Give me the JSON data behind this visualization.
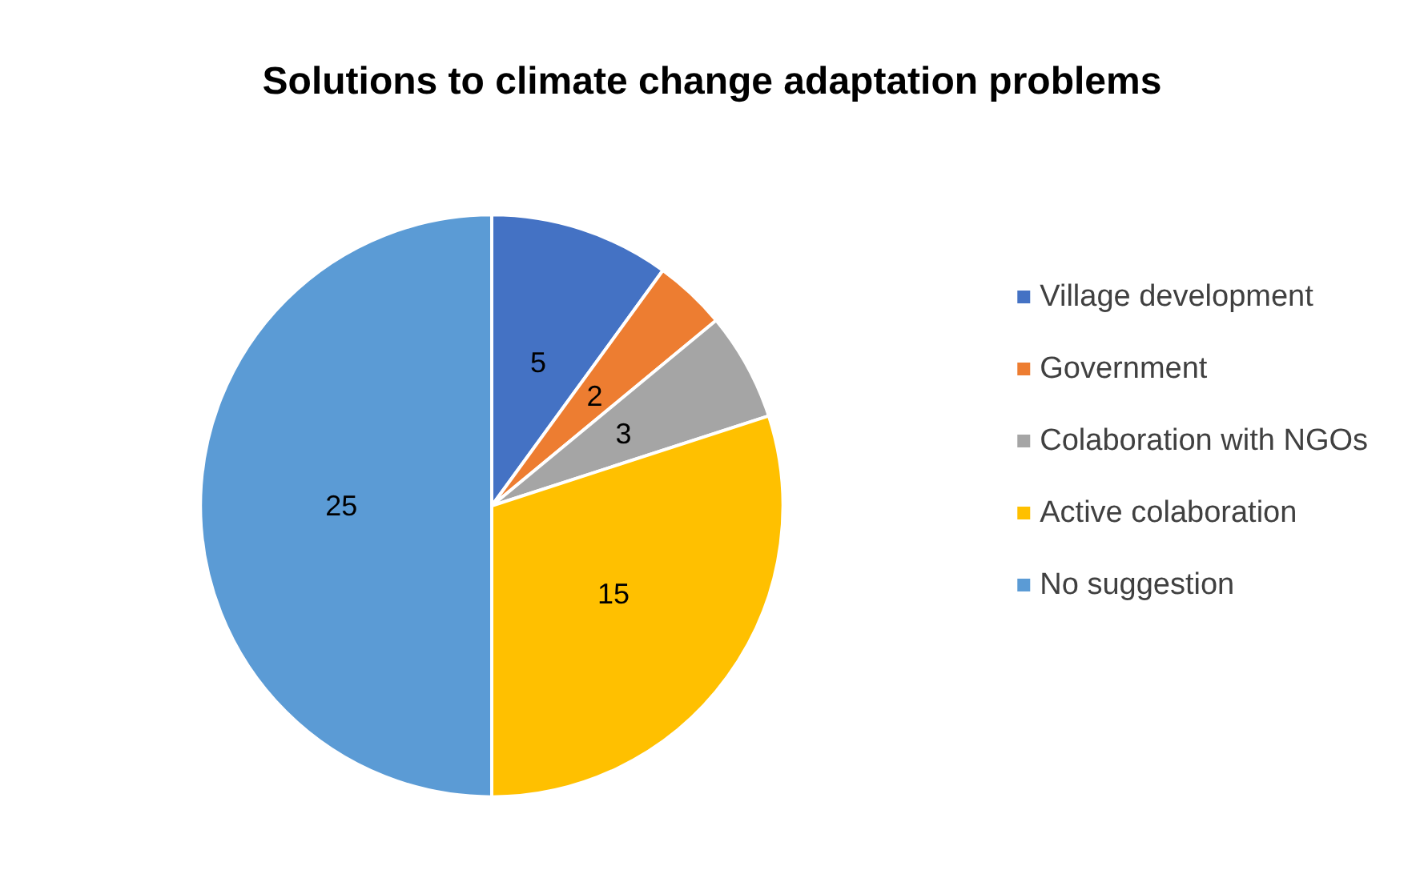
{
  "chart_data": {
    "type": "pie",
    "title": "Solutions to climate change adaptation problems",
    "categories": [
      "Village development",
      "Government",
      "Colaboration with NGOs",
      "Active colaboration",
      "No suggestion"
    ],
    "values": [
      5,
      2,
      3,
      15,
      25
    ],
    "colors": [
      "#4472c4",
      "#ed7d31",
      "#a5a5a5",
      "#ffc000",
      "#5b9bd5"
    ],
    "data_labels": true,
    "legend": "right"
  }
}
